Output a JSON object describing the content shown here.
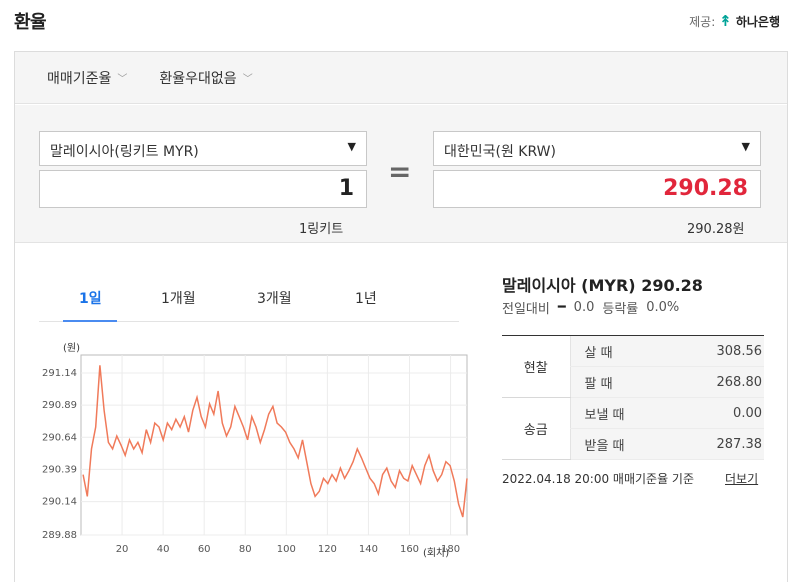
{
  "header": {
    "title": "환율",
    "provider_label": "제공:",
    "provider_name": "하나은행"
  },
  "filters": {
    "rate_basis": "매매기준율",
    "preferential": "환율우대없음"
  },
  "converter": {
    "from_currency": "말레이시아(링키트 MYR)",
    "from_amount": "1",
    "from_note": "1링키트",
    "to_currency": "대한민국(원 KRW)",
    "to_amount": "290.28",
    "to_note": "290.28원",
    "equals": "="
  },
  "tabs": [
    "1일",
    "1개월",
    "3개월",
    "1년"
  ],
  "active_tab": 0,
  "summary": {
    "headline": "말레이시아 (MYR) 290.28",
    "change_label": "전일대비",
    "change_value": "0.0",
    "rate_label": "등락률",
    "rate_value": "0.0%"
  },
  "rates": {
    "cash_label": "현찰",
    "remit_label": "송금",
    "rows": [
      {
        "label": "살 때",
        "value": "308.56"
      },
      {
        "label": "팔 때",
        "value": "268.80"
      },
      {
        "label": "보낼 때",
        "value": "0.00"
      },
      {
        "label": "받을 때",
        "value": "287.38"
      }
    ]
  },
  "footer": {
    "timestamp": "2022.04.18 20:00  매매기준율 기준",
    "more": "더보기"
  },
  "colors": {
    "accent_blue": "#1a73e8",
    "price_red": "#e1263b",
    "line": "#f07a5a",
    "provider_green": "#00a398"
  },
  "chart_data": {
    "type": "line",
    "ylabel": "(원)",
    "xlabel": "(회차)",
    "yticks": [
      291.14,
      290.89,
      290.64,
      290.39,
      290.14,
      289.88
    ],
    "xticks": [
      20,
      40,
      60,
      80,
      100,
      120,
      140,
      160,
      180
    ],
    "xlim": [
      0,
      188
    ],
    "ylim": [
      289.88,
      291.28
    ],
    "series": [
      {
        "values": [
          290.35,
          290.18,
          290.55,
          290.72,
          291.2,
          290.85,
          290.6,
          290.55,
          290.65,
          290.58,
          290.5,
          290.62,
          290.55,
          290.6,
          290.52,
          290.7,
          290.6,
          290.75,
          290.72,
          290.62,
          290.75,
          290.7,
          290.78,
          290.72,
          290.8,
          290.68,
          290.85,
          290.95,
          290.8,
          290.72,
          290.9,
          290.82,
          291.0,
          290.75,
          290.65,
          290.72,
          290.88,
          290.8,
          290.72,
          290.62,
          290.8,
          290.72,
          290.6,
          290.7,
          290.82,
          290.88,
          290.75,
          290.72,
          290.68,
          290.6,
          290.55,
          290.48,
          290.62,
          290.45,
          290.28,
          290.18,
          290.22,
          290.32,
          290.28,
          290.35,
          290.3,
          290.4,
          290.32,
          290.38,
          290.45,
          290.55,
          290.48,
          290.4,
          290.32,
          290.28,
          290.2,
          290.35,
          290.4,
          290.3,
          290.25,
          290.38,
          290.32,
          290.3,
          290.42,
          290.35,
          290.28,
          290.42,
          290.5,
          290.38,
          290.3,
          290.35,
          290.45,
          290.42,
          290.3,
          290.12,
          290.02,
          290.32
        ]
      }
    ]
  }
}
